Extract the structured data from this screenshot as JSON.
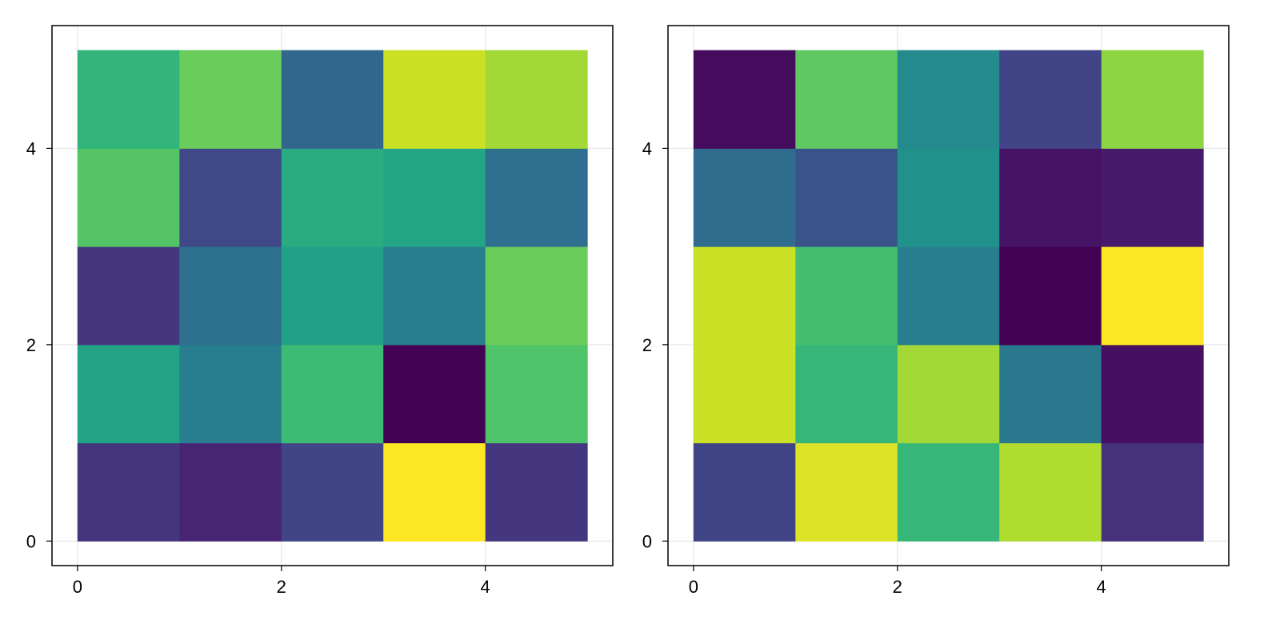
{
  "chart_data": [
    {
      "type": "heatmap",
      "colormap": "viridis",
      "x_edges": [
        0,
        1,
        2,
        3,
        4,
        5
      ],
      "y_edges": [
        0,
        1,
        2,
        3,
        4,
        5
      ],
      "xlim": [
        -0.25,
        5.25
      ],
      "ylim": [
        -0.25,
        5.25
      ],
      "xticks": [
        0,
        2,
        4
      ],
      "yticks": [
        0,
        2,
        4
      ],
      "xtick_labels": [
        "0",
        "2",
        "4"
      ],
      "ytick_labels": [
        "0",
        "2",
        "4"
      ],
      "grid": true,
      "values_by_row_bottom_to_top": [
        [
          0.15,
          0.1,
          0.2,
          1.0,
          0.16
        ],
        [
          0.58,
          0.42,
          0.68,
          0.0,
          0.72
        ],
        [
          0.16,
          0.37,
          0.57,
          0.42,
          0.77
        ],
        [
          0.73,
          0.22,
          0.62,
          0.59,
          0.36
        ],
        [
          0.65,
          0.77,
          0.33,
          0.92,
          0.86
        ]
      ]
    },
    {
      "type": "heatmap",
      "colormap": "viridis",
      "x_edges": [
        0,
        1,
        2,
        3,
        4,
        5
      ],
      "y_edges": [
        0,
        1,
        2,
        3,
        4,
        5
      ],
      "xlim": [
        -0.25,
        5.25
      ],
      "ylim": [
        -0.25,
        5.25
      ],
      "xticks": [
        0,
        2,
        4
      ],
      "yticks": [
        0,
        2,
        4
      ],
      "xtick_labels": [
        "0",
        "2",
        "4"
      ],
      "ytick_labels": [
        "0",
        "2",
        "4"
      ],
      "grid": true,
      "values_by_row_bottom_to_top": [
        [
          0.2,
          0.95,
          0.66,
          0.88,
          0.14
        ],
        [
          0.92,
          0.66,
          0.86,
          0.4,
          0.04
        ],
        [
          0.92,
          0.7,
          0.42,
          0.0,
          1.0
        ],
        [
          0.35,
          0.26,
          0.5,
          0.05,
          0.07
        ],
        [
          0.03,
          0.75,
          0.47,
          0.2,
          0.83
        ]
      ]
    }
  ]
}
